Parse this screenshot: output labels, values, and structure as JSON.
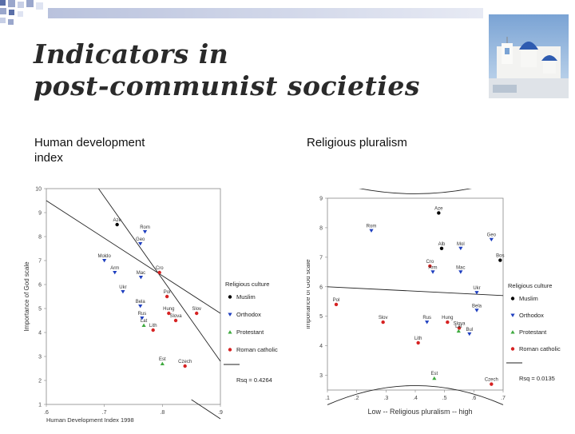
{
  "title": {
    "line1": "Indicators in",
    "line2": "post-communist societies"
  },
  "subtitles": {
    "left": "Human development\nindex",
    "right": "Religious pluralism"
  },
  "colors": {
    "deco_dark": "#5a6fa8",
    "deco_mid": "#9aa7cc",
    "deco_light": "#dfe4f2",
    "muslim": "#000000",
    "orthodox": "#1f3fbf",
    "protestant": "#3faa3f",
    "catholic": "#d62222"
  },
  "chart_data": [
    {
      "type": "scatter",
      "xlabel": "Human Development Index 1998",
      "ylabel": "Importance of God scale",
      "xlim": [
        0.6,
        0.9
      ],
      "ylim": [
        1,
        10
      ],
      "xticks": [
        ".6",
        ".7",
        ".8",
        ".9"
      ],
      "yticks": [
        1,
        2,
        3,
        4,
        5,
        6,
        7,
        8,
        9,
        10
      ],
      "legend": {
        "title": "Religious culture",
        "position": "right",
        "items": [
          {
            "name": "Muslim",
            "marker": "dot",
            "color": "#000000"
          },
          {
            "name": "Orthodox",
            "marker": "tri-down",
            "color": "#1f3fbf"
          },
          {
            "name": "Protestant",
            "marker": "tri-up",
            "color": "#3faa3f"
          },
          {
            "name": "Roman catholic",
            "marker": "dot",
            "color": "#d62222"
          }
        ]
      },
      "rsq": "Rsq = 0.4264",
      "points": [
        {
          "label": "Aze",
          "x": 0.722,
          "y": 8.5,
          "group": "Muslim"
        },
        {
          "label": "Rom",
          "x": 0.77,
          "y": 8.2,
          "group": "Orthodox"
        },
        {
          "label": "Geo",
          "x": 0.762,
          "y": 7.7,
          "group": "Orthodox"
        },
        {
          "label": "Moldo",
          "x": 0.7,
          "y": 7.0,
          "group": "Orthodox"
        },
        {
          "label": "Arm",
          "x": 0.718,
          "y": 6.5,
          "group": "Orthodox"
        },
        {
          "label": "Cro",
          "x": 0.795,
          "y": 6.5,
          "group": "Roman catholic"
        },
        {
          "label": "Mac",
          "x": 0.763,
          "y": 6.3,
          "group": "Orthodox"
        },
        {
          "label": "Ukr",
          "x": 0.732,
          "y": 5.7,
          "group": "Orthodox"
        },
        {
          "label": "Pol",
          "x": 0.808,
          "y": 5.5,
          "group": "Roman catholic"
        },
        {
          "label": "Bela",
          "x": 0.762,
          "y": 5.1,
          "group": "Orthodox"
        },
        {
          "label": "Hung",
          "x": 0.811,
          "y": 4.8,
          "group": "Roman catholic"
        },
        {
          "label": "Slov",
          "x": 0.859,
          "y": 4.8,
          "group": "Roman catholic"
        },
        {
          "label": "Rus",
          "x": 0.765,
          "y": 4.6,
          "group": "Orthodox"
        },
        {
          "label": "Slova",
          "x": 0.823,
          "y": 4.5,
          "group": "Roman catholic"
        },
        {
          "label": "Lat",
          "x": 0.768,
          "y": 4.3,
          "group": "Protestant"
        },
        {
          "label": "Lith",
          "x": 0.784,
          "y": 4.1,
          "group": "Roman catholic"
        },
        {
          "label": "Est",
          "x": 0.8,
          "y": 2.7,
          "group": "Protestant"
        },
        {
          "label": "Czech",
          "x": 0.839,
          "y": 2.6,
          "group": "Roman catholic"
        }
      ]
    },
    {
      "type": "scatter",
      "xlabel": "Low -- Religious pluralism -- high",
      "ylabel": "Importance of God scale",
      "xlim": [
        0.1,
        0.7
      ],
      "ylim": [
        2.5,
        9
      ],
      "xticks": [
        ".1",
        ".2",
        ".3",
        ".4",
        ".5",
        ".6",
        ".7"
      ],
      "yticks": [
        3,
        4,
        5,
        6,
        7,
        8,
        9
      ],
      "legend": {
        "title": "Religious culture",
        "position": "right",
        "items": [
          {
            "name": "Muslim",
            "marker": "dot",
            "color": "#000000"
          },
          {
            "name": "Orthodox",
            "marker": "tri-down",
            "color": "#1f3fbf"
          },
          {
            "name": "Protestant",
            "marker": "tri-up",
            "color": "#3faa3f"
          },
          {
            "name": "Roman catholic",
            "marker": "dot",
            "color": "#d62222"
          }
        ]
      },
      "rsq": "Rsq = 0.0135",
      "points": [
        {
          "label": "Aze",
          "x": 0.48,
          "y": 8.5,
          "group": "Muslim"
        },
        {
          "label": "Rom",
          "x": 0.25,
          "y": 7.9,
          "group": "Orthodox"
        },
        {
          "label": "Geo",
          "x": 0.66,
          "y": 7.6,
          "group": "Orthodox"
        },
        {
          "label": "Alb",
          "x": 0.49,
          "y": 7.3,
          "group": "Muslim"
        },
        {
          "label": "Mol",
          "x": 0.555,
          "y": 7.3,
          "group": "Orthodox"
        },
        {
          "label": "Bos",
          "x": 0.69,
          "y": 6.9,
          "group": "Muslim"
        },
        {
          "label": "Cro",
          "x": 0.45,
          "y": 6.7,
          "group": "Roman catholic"
        },
        {
          "label": "Arm",
          "x": 0.46,
          "y": 6.5,
          "group": "Orthodox"
        },
        {
          "label": "Mac",
          "x": 0.555,
          "y": 6.5,
          "group": "Orthodox"
        },
        {
          "label": "Ukr",
          "x": 0.61,
          "y": 5.8,
          "group": "Orthodox"
        },
        {
          "label": "Pol",
          "x": 0.13,
          "y": 5.4,
          "group": "Roman catholic"
        },
        {
          "label": "Bela",
          "x": 0.61,
          "y": 5.2,
          "group": "Orthodox"
        },
        {
          "label": "Slov",
          "x": 0.29,
          "y": 4.8,
          "group": "Roman catholic"
        },
        {
          "label": "Rus",
          "x": 0.44,
          "y": 4.8,
          "group": "Orthodox"
        },
        {
          "label": "Hung",
          "x": 0.51,
          "y": 4.8,
          "group": "Roman catholic"
        },
        {
          "label": "Slova",
          "x": 0.55,
          "y": 4.6,
          "group": "Roman catholic"
        },
        {
          "label": "Lat",
          "x": 0.548,
          "y": 4.5,
          "group": "Protestant"
        },
        {
          "label": "Bul",
          "x": 0.585,
          "y": 4.4,
          "group": "Orthodox"
        },
        {
          "label": "Lith",
          "x": 0.41,
          "y": 4.1,
          "group": "Roman catholic"
        },
        {
          "label": "Est",
          "x": 0.465,
          "y": 2.9,
          "group": "Protestant"
        },
        {
          "label": "Czech",
          "x": 0.66,
          "y": 2.7,
          "group": "Roman catholic"
        }
      ]
    }
  ]
}
